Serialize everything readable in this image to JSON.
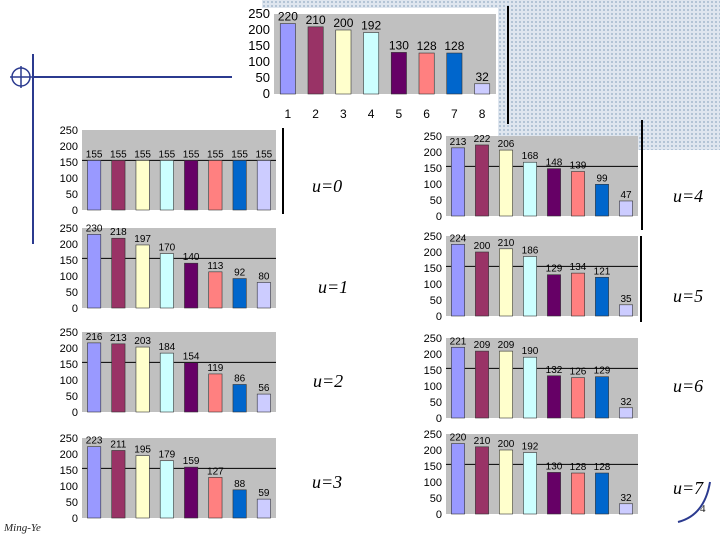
{
  "colors": [
    "#9999ff",
    "#993366",
    "#ffffcc",
    "#ccffff",
    "#660066",
    "#ff8080",
    "#0066cc",
    "#ccccff"
  ],
  "plot_bg": "#c0c0c0",
  "footer": "Ming-Ye",
  "page_number": "4",
  "chart_data": [
    {
      "type": "bar",
      "id": "original",
      "title": "",
      "yticks": [
        "250",
        "200",
        "150",
        "100",
        "50",
        "0"
      ],
      "ylim": [
        0,
        250
      ],
      "categories": [
        "1",
        "2",
        "3",
        "4",
        "5",
        "6",
        "7",
        "8"
      ],
      "values": [
        220,
        210,
        200,
        192,
        130,
        128,
        128,
        32
      ],
      "value_labels": [
        "220",
        "210",
        "200",
        "192",
        "130",
        "128",
        "128",
        "32"
      ]
    },
    {
      "type": "bar",
      "id": "u0",
      "label": "u=0",
      "yticks": [
        "250",
        "200",
        "150",
        "100",
        "50",
        "0"
      ],
      "ylim": [
        0,
        250
      ],
      "reference": 155,
      "values": [
        155,
        155,
        155,
        155,
        155,
        155,
        155,
        155
      ],
      "value_labels": [
        "155",
        "155",
        "155",
        "155",
        "155",
        "155",
        "155",
        "155"
      ]
    },
    {
      "type": "bar",
      "id": "u1",
      "label": "u=1",
      "yticks": [
        "250",
        "200",
        "150",
        "100",
        "50",
        "0"
      ],
      "ylim": [
        0,
        250
      ],
      "reference": 155,
      "values": [
        230,
        218,
        197,
        170,
        140,
        113,
        92,
        80
      ],
      "value_labels": [
        "230",
        "218",
        "197",
        "170",
        "140",
        "113",
        "92",
        "80"
      ]
    },
    {
      "type": "bar",
      "id": "u2",
      "label": "u=2",
      "yticks": [
        "250",
        "200",
        "150",
        "100",
        "50",
        "0"
      ],
      "ylim": [
        0,
        250
      ],
      "reference": 155,
      "values": [
        216,
        213,
        203,
        184,
        154,
        119,
        86,
        56
      ],
      "value_labels": [
        "216",
        "213",
        "203",
        "184",
        "154",
        "119",
        "86",
        "56"
      ]
    },
    {
      "type": "bar",
      "id": "u3",
      "label": "u=3",
      "yticks": [
        "250",
        "200",
        "150",
        "100",
        "50",
        "0"
      ],
      "ylim": [
        0,
        250
      ],
      "reference": 155,
      "values": [
        223,
        211,
        195,
        179,
        159,
        127,
        88,
        59
      ],
      "value_labels": [
        "223",
        "211",
        "195",
        "179",
        "159",
        "127",
        "88",
        "59"
      ]
    },
    {
      "type": "bar",
      "id": "u4",
      "label": "u=4",
      "yticks": [
        "250",
        "200",
        "150",
        "100",
        "50",
        "0"
      ],
      "ylim": [
        0,
        250
      ],
      "reference": 155,
      "values": [
        213,
        222,
        206,
        168,
        148,
        139,
        99,
        47
      ],
      "value_labels": [
        "213",
        "222",
        "206",
        "168",
        "148",
        "139",
        "99",
        "47"
      ]
    },
    {
      "type": "bar",
      "id": "u5",
      "label": "u=5",
      "yticks": [
        "250",
        "200",
        "150",
        "100",
        "50",
        "0"
      ],
      "ylim": [
        0,
        250
      ],
      "reference": 155,
      "values": [
        224,
        200,
        210,
        186,
        129,
        134,
        121,
        35
      ],
      "value_labels": [
        "224",
        "200",
        "210",
        "186",
        "129",
        "134",
        "121",
        "35"
      ]
    },
    {
      "type": "bar",
      "id": "u6",
      "label": "u=6",
      "yticks": [
        "250",
        "200",
        "150",
        "100",
        "50",
        "0"
      ],
      "ylim": [
        0,
        250
      ],
      "reference": 155,
      "values": [
        221,
        209,
        209,
        190,
        132,
        126,
        129,
        32
      ],
      "value_labels": [
        "221",
        "209",
        "209",
        "190",
        "132",
        "126",
        "129",
        "32"
      ]
    },
    {
      "type": "bar",
      "id": "u7",
      "label": "u=7",
      "yticks": [
        "250",
        "200",
        "150",
        "100",
        "50",
        "0"
      ],
      "ylim": [
        0,
        250
      ],
      "reference": 155,
      "values": [
        220,
        210,
        200,
        192,
        130,
        128,
        128,
        32
      ],
      "value_labels": [
        "220",
        "210",
        "200",
        "192",
        "130",
        "128",
        "128",
        "32"
      ]
    }
  ]
}
